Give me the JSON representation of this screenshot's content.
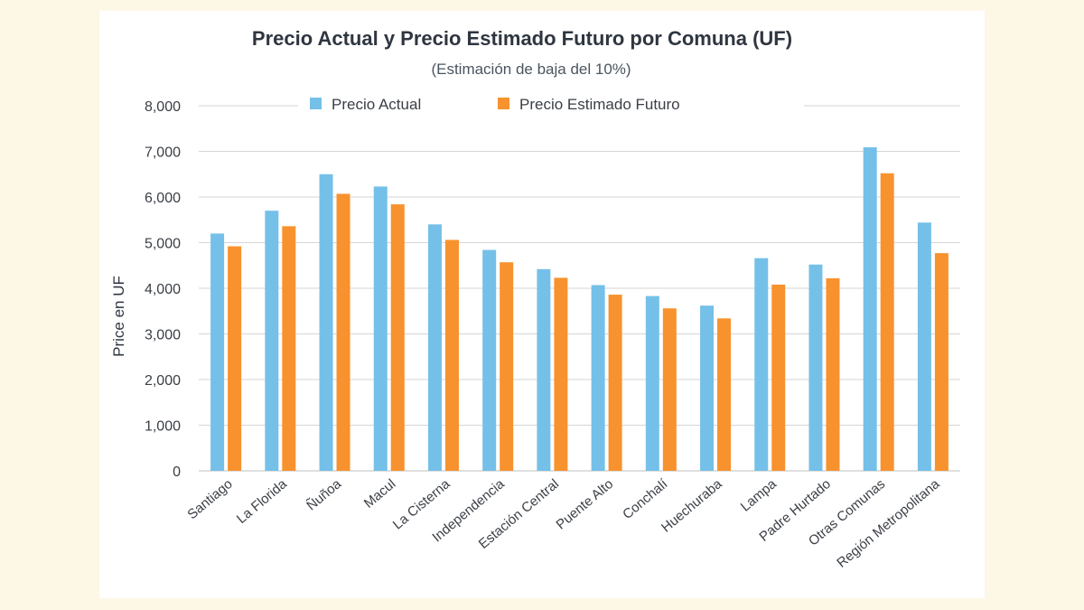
{
  "chart_data": {
    "type": "bar",
    "title": "Precio Actual y Precio Estimado Futuro por Comuna (UF)",
    "subtitle": "(Estimación de baja del 10%)",
    "xlabel": "",
    "ylabel": "Price en UF",
    "ylim": [
      0,
      8000
    ],
    "yticks": [
      0,
      1000,
      2000,
      3000,
      4000,
      5000,
      6000,
      7000,
      8000
    ],
    "ytick_labels": [
      "0",
      "1,000",
      "2,000",
      "3,000",
      "4,000",
      "5,000",
      "6,000",
      "7,000",
      "8,000"
    ],
    "grid": true,
    "legend_position": "top",
    "categories": [
      "Santiago",
      "La Florida",
      "Ñuñoa",
      "Macul",
      "La Cisterna",
      "Independencia",
      "Estación Central",
      "Puente Alto",
      "Conchalí",
      "Huechuraba",
      "Lampa",
      "Padre Hurtado",
      "Otras Comunas",
      "Región Metropolitana"
    ],
    "series": [
      {
        "name": "Precio Actual",
        "color": "#75c0e8",
        "values": [
          5200,
          5700,
          6500,
          6230,
          5400,
          4840,
          4420,
          4070,
          3830,
          3620,
          4660,
          4520,
          7090,
          5440
        ]
      },
      {
        "name": "Precio Estimado Futuro",
        "color": "#f7922e",
        "values": [
          4920,
          5360,
          6070,
          5840,
          5060,
          4570,
          4230,
          3860,
          3560,
          3340,
          4080,
          4220,
          6520,
          4770
        ]
      }
    ]
  }
}
